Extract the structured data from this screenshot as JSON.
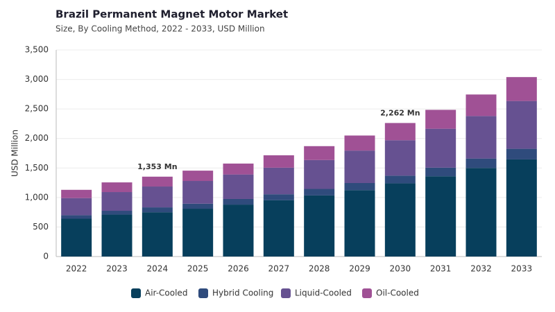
{
  "chart_data": {
    "type": "stacked_bar",
    "title": "Brazil Permanent Magnet Motor Market",
    "subtitle": "Size, By Cooling Method, 2022 - 2033, USD Million",
    "y_label": "USD Million",
    "categories": [
      "2022",
      "2023",
      "2024",
      "2025",
      "2026",
      "2027",
      "2028",
      "2029",
      "2030",
      "2031",
      "2032",
      "2033"
    ],
    "series": [
      {
        "name": "Air-Cooled",
        "color": "#073f5c",
        "values": [
          640,
          710,
          750,
          810,
          880,
          955,
          1035,
          1125,
          1240,
          1360,
          1500,
          1645
        ]
      },
      {
        "name": "Hybrid Cooling",
        "color": "#2f4b7c",
        "values": [
          60,
          65,
          83,
          85,
          95,
          100,
          110,
          120,
          130,
          145,
          160,
          180
        ]
      },
      {
        "name": "Liquid-Cooled",
        "color": "#665191",
        "values": [
          290,
          317,
          353,
          385,
          415,
          450,
          490,
          550,
          600,
          660,
          720,
          810
        ]
      },
      {
        "name": "Oil-Cooled",
        "color": "#a05195",
        "values": [
          140,
          164,
          167,
          175,
          185,
          210,
          235,
          255,
          292,
          320,
          365,
          405
        ]
      }
    ],
    "ylim": [
      0,
      3500
    ],
    "yticks": [
      0,
      500,
      {
        "value": 1000,
        "label": "1,000"
      },
      {
        "value": 1500,
        "label": "1,500"
      },
      {
        "value": 2000,
        "label": "2,000"
      },
      {
        "value": 2500,
        "label": "2,500"
      },
      {
        "value": 3000,
        "label": "3,000"
      },
      {
        "value": 3500,
        "label": "3,500"
      }
    ],
    "grid": true,
    "annotations": [
      {
        "category": "2024",
        "text": "1,353 Mn"
      },
      {
        "category": "2030",
        "text": "2,262 Mn"
      }
    ]
  }
}
